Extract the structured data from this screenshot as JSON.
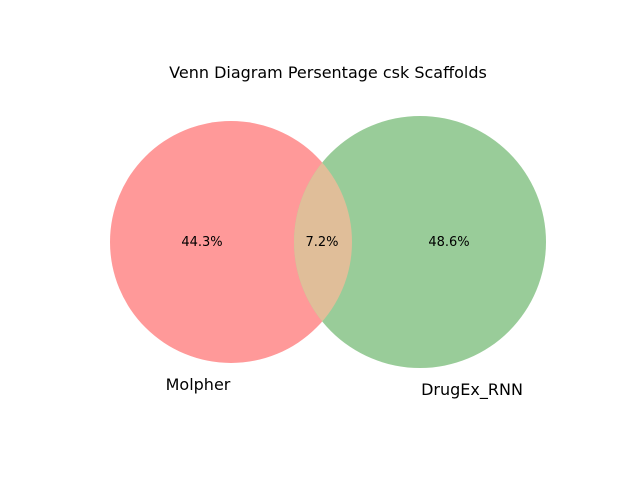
{
  "title": "Venn Diagram Persentage csk Scaffolds",
  "sets": [
    {
      "name": "Molpher",
      "only_label": "44.3%",
      "color": "#ff9999"
    },
    {
      "name": "DrugEx_RNN",
      "only_label": "48.6%",
      "color": "#99cc99"
    }
  ],
  "intersection": {
    "label": "7.2%",
    "color": "#e0be99"
  }
}
